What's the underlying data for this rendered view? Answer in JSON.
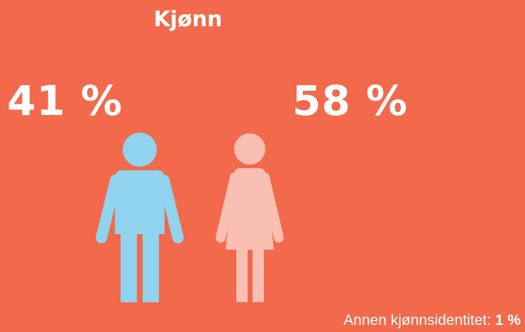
{
  "title": "Kjønn",
  "groups": [
    {
      "value": "41 %"
    },
    {
      "value": "58 %"
    }
  ],
  "other": {
    "label": "Annen kjønnsidentitet:",
    "value": "1 %"
  }
}
